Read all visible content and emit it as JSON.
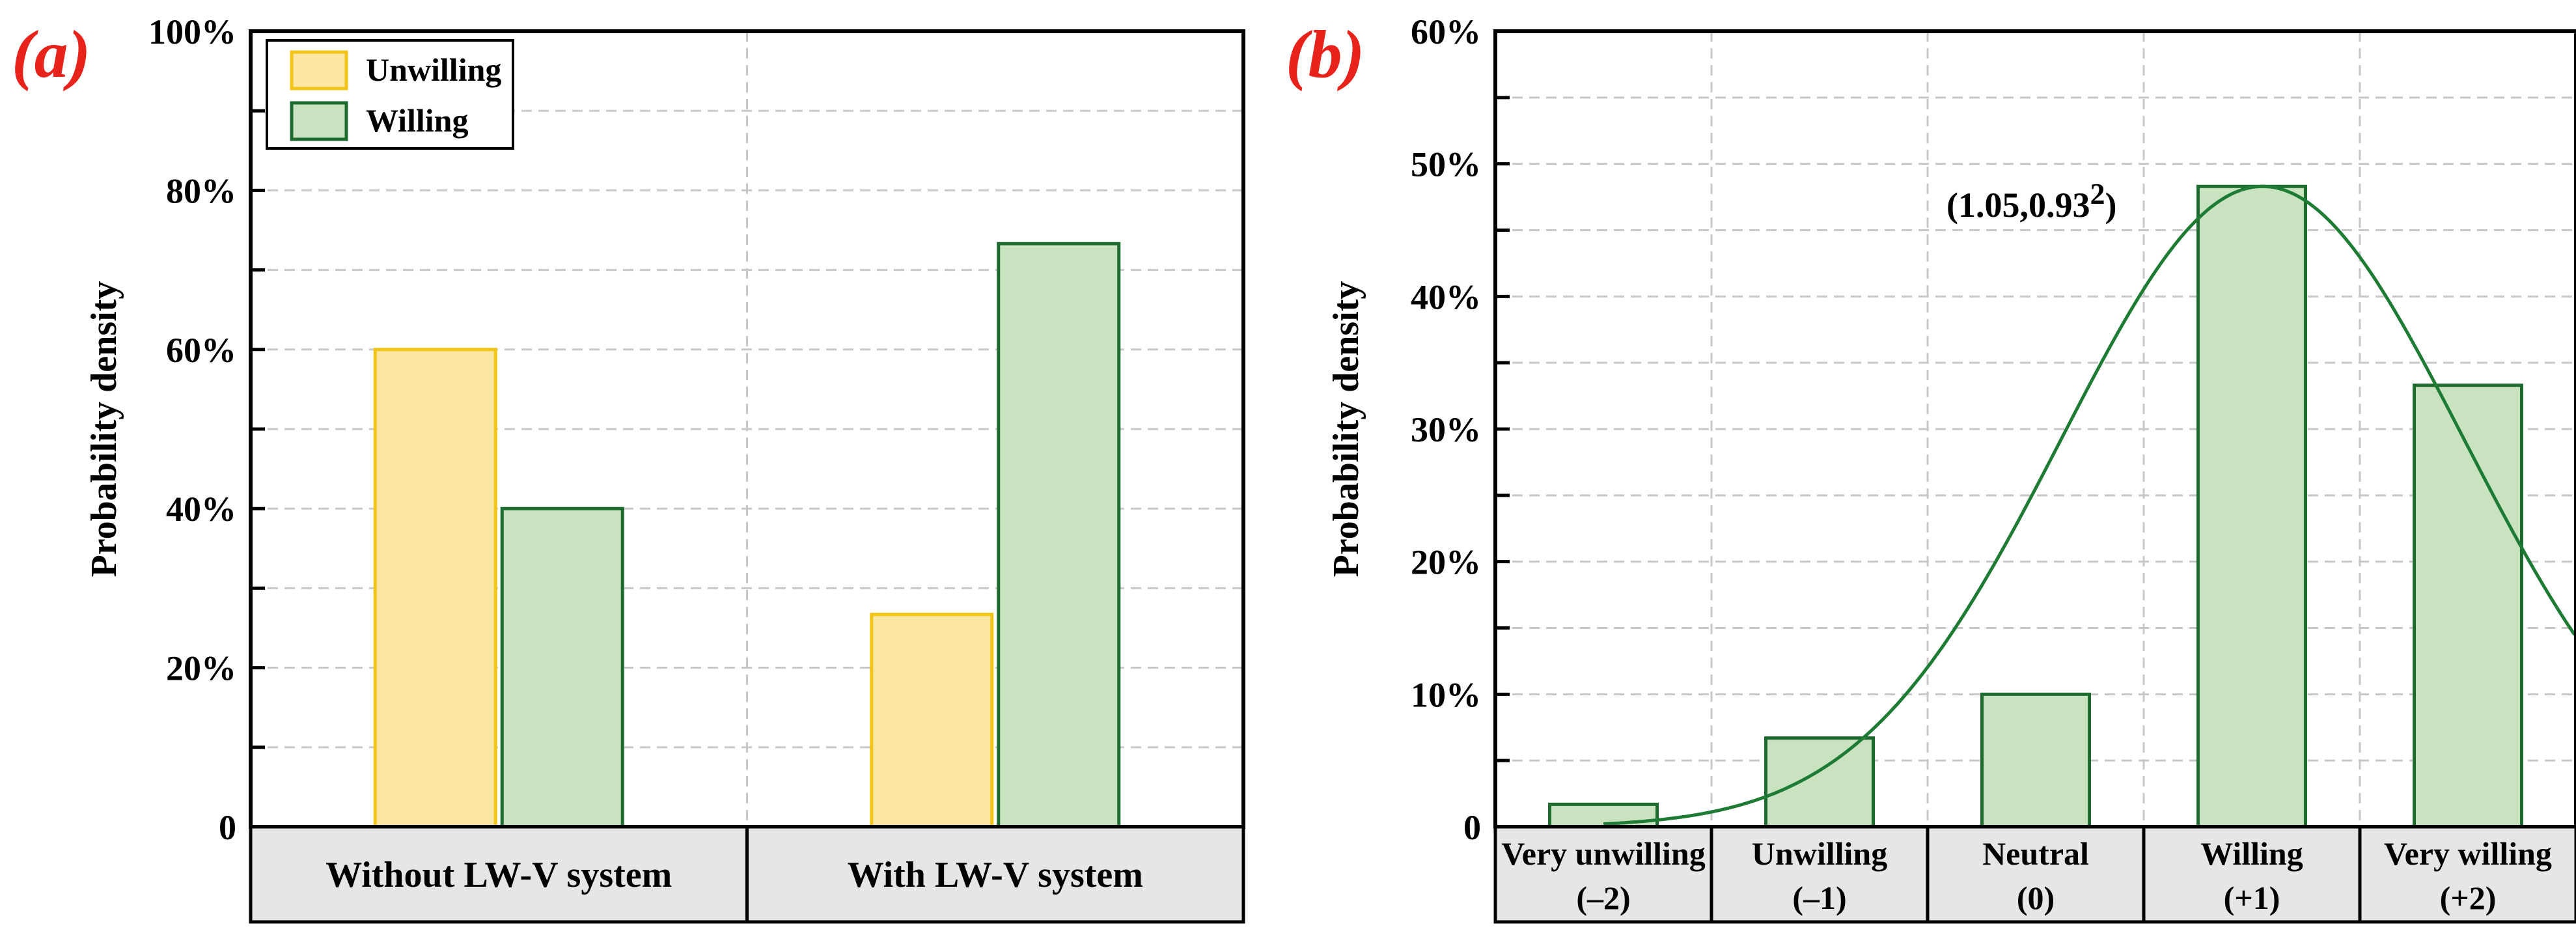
{
  "colors": {
    "unwilling_fill": "#fde6a2",
    "unwilling_stroke": "#f2c418",
    "willing_fill": "#c9e3c1",
    "willing_stroke": "#1e6b30",
    "curve": "#1e7b34",
    "panel_label": "#e8231b"
  },
  "chart_data": [
    {
      "type": "bar",
      "panel_label": "(a)",
      "ylabel": "Probability density",
      "ylim": [
        0,
        100
      ],
      "yticks": [
        {
          "v": 0,
          "label": "0"
        },
        {
          "v": 20,
          "label": "20%"
        },
        {
          "v": 40,
          "label": "40%"
        },
        {
          "v": 60,
          "label": "60%"
        },
        {
          "v": 80,
          "label": "80%"
        },
        {
          "v": 100,
          "label": "100%"
        }
      ],
      "categories": [
        "Without LW-V system",
        "With LW-V system"
      ],
      "series": [
        {
          "name": "Unwilling",
          "values": [
            60,
            26.7
          ]
        },
        {
          "name": "Willing",
          "values": [
            40,
            73.3
          ]
        }
      ],
      "legend": "top-left",
      "grid": true
    },
    {
      "type": "bar",
      "panel_label": "(b)",
      "ylabel": "Probability density",
      "ylim": [
        0,
        60
      ],
      "yticks": [
        {
          "v": 0,
          "label": "0"
        },
        {
          "v": 10,
          "label": "10%"
        },
        {
          "v": 20,
          "label": "20%"
        },
        {
          "v": 30,
          "label": "30%"
        },
        {
          "v": 40,
          "label": "40%"
        },
        {
          "v": 50,
          "label": "50%"
        },
        {
          "v": 60,
          "label": "60%"
        }
      ],
      "categories": [
        {
          "label": "Very unwilling",
          "code": "(–2)"
        },
        {
          "label": "Unwilling",
          "code": "(–1)"
        },
        {
          "label": "Neutral",
          "code": "(0)"
        },
        {
          "label": "Willing",
          "code": "(+1)"
        },
        {
          "label": "Very willing",
          "code": "(+2)"
        }
      ],
      "values": [
        1.7,
        6.7,
        10,
        48.3,
        33.3
      ],
      "curve": {
        "type": "normal",
        "mean": 1.05,
        "sd": 0.93,
        "peak_pct": 48.3
      },
      "annotation": {
        "main": "(1.05,0.93",
        "sup": "2",
        "close": ")"
      },
      "grid": true
    }
  ]
}
